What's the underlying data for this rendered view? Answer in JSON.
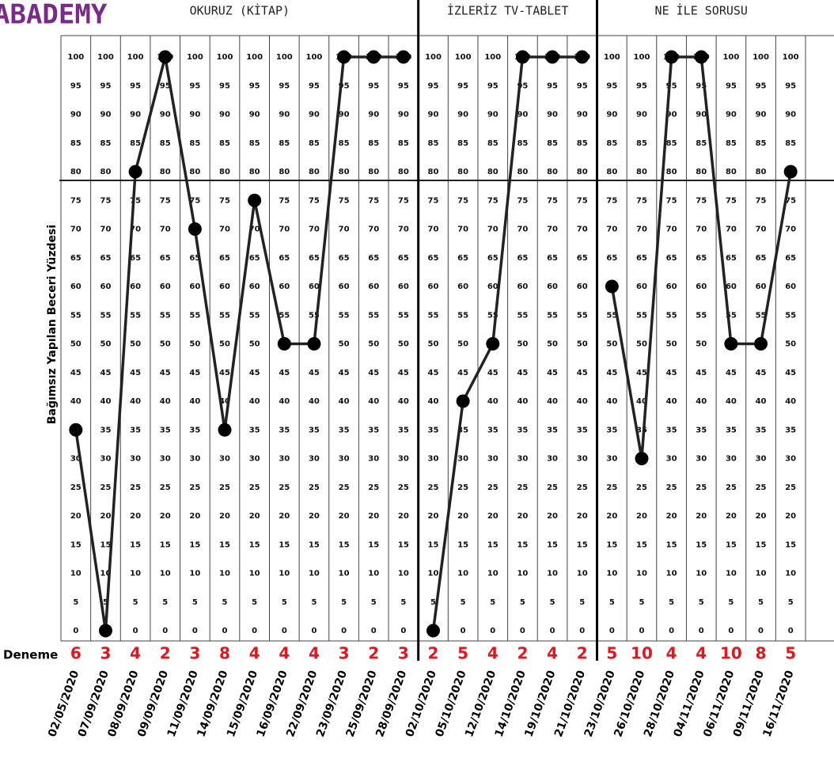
{
  "chart_data": {
    "type": "line",
    "brand": "ABADEMY",
    "y_axis_label": "Bağımsız Yapılan Beceri Yüzdesi",
    "trials_label": "Deneme",
    "categories": [
      "02/05/2020",
      "07/09/2020",
      "08/09/2020",
      "09/09/2020",
      "11/09/2020",
      "14/09/2020",
      "15/09/2020",
      "16/09/2020",
      "22/09/2020",
      "23/09/2020",
      "25/09/2020",
      "28/09/2020",
      "02/10/2020",
      "05/10/2020",
      "12/10/2020",
      "14/10/2020",
      "19/10/2020",
      "21/10/2020",
      "23/10/2020",
      "26/10/2020",
      "28/10/2020",
      "04/11/2020",
      "06/11/2020",
      "09/11/2020",
      "16/11/2020"
    ],
    "trials": [
      6,
      3,
      4,
      2,
      3,
      8,
      4,
      4,
      4,
      3,
      2,
      3,
      2,
      5,
      4,
      2,
      4,
      2,
      5,
      10,
      4,
      4,
      10,
      8,
      5
    ],
    "series": [
      {
        "name": "OKURUZ (KİTAP)",
        "color": "#222222",
        "values": [
          35,
          0,
          80,
          100,
          70,
          35,
          75,
          50,
          50,
          100,
          100,
          100,
          null,
          null,
          null,
          null,
          null,
          null,
          null,
          null,
          null,
          null,
          null,
          null,
          null
        ]
      },
      {
        "name": "İZLERİZ TV-TABLET",
        "color": "#222222",
        "values": [
          null,
          null,
          null,
          null,
          null,
          null,
          null,
          null,
          null,
          null,
          null,
          null,
          0,
          40,
          50,
          100,
          100,
          100,
          null,
          null,
          null,
          null,
          null,
          null,
          null
        ]
      },
      {
        "name": "NE İLE SORUSU",
        "color": "#222222",
        "values": [
          null,
          null,
          null,
          null,
          null,
          null,
          null,
          null,
          null,
          null,
          null,
          null,
          null,
          null,
          null,
          null,
          null,
          null,
          60,
          30,
          100,
          100,
          50,
          50,
          80
        ]
      }
    ],
    "criterion": 80,
    "ylim": [
      0,
      100
    ],
    "yticks": [
      0,
      5,
      10,
      15,
      20,
      25,
      30,
      35,
      40,
      45,
      50,
      55,
      60,
      65,
      70,
      75,
      80,
      85,
      90,
      95,
      100
    ]
  }
}
